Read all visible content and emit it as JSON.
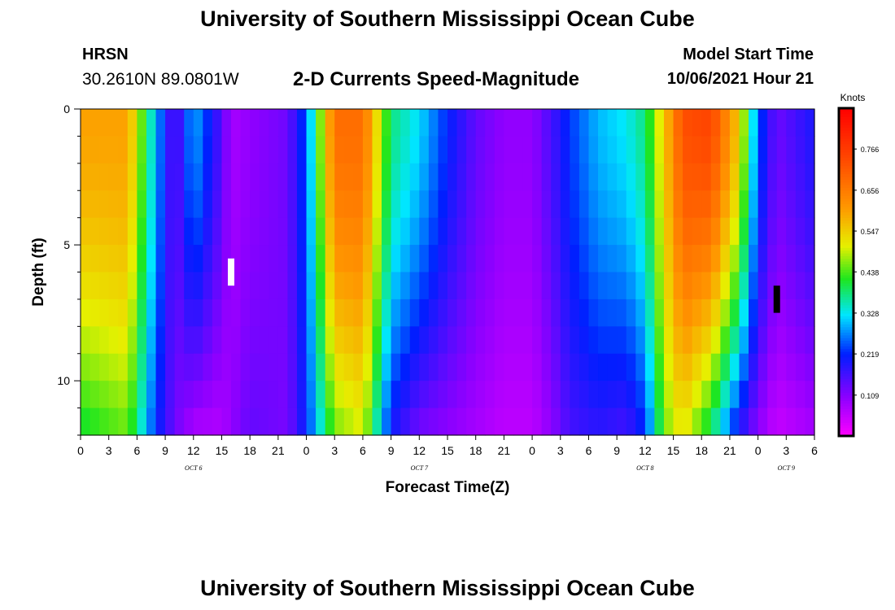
{
  "header": {
    "title": "University of Southern Mississippi Ocean Cube",
    "station": "HRSN",
    "coordinates": "30.2610N  89.0801W",
    "subtitle": "2-D Currents Speed-Magnitude",
    "model_start_label": "Model Start Time",
    "model_start_value": "10/06/2021 Hour 21"
  },
  "footer": {
    "title": "University of Southern Mississippi Ocean Cube"
  },
  "chart_data": {
    "type": "heatmap",
    "title": "2-D Currents Speed-Magnitude",
    "xlabel": "Forecast Time(Z)",
    "ylabel": "Depth (ft)",
    "colorbar_label": "Knots",
    "xlim": [
      0,
      78
    ],
    "ylim": [
      0,
      12
    ],
    "x_tick_labels": [
      "0",
      "3",
      "6",
      "9",
      "12",
      "15",
      "18",
      "21",
      "0",
      "3",
      "6",
      "9",
      "12",
      "15",
      "18",
      "21",
      "0",
      "3",
      "6",
      "9",
      "12",
      "15",
      "18",
      "21",
      "0",
      "3",
      "6"
    ],
    "y_tick_values": [
      0,
      5,
      10
    ],
    "y_tick_labels": [
      "0",
      "5",
      "10"
    ],
    "date_labels": [
      {
        "text": "OCT 6",
        "hours": 12
      },
      {
        "text": "OCT 7",
        "hours": 36
      },
      {
        "text": "OCT 8",
        "hours": 60
      },
      {
        "text": "OCT 9",
        "hours": 75
      }
    ],
    "colorbar_range": [
      0,
      0.875
    ],
    "colorbar_ticks": [
      "0.109",
      "0.219",
      "0.328",
      "0.438",
      "0.547",
      "0.656",
      "0.766"
    ],
    "colorbar_tick_values": [
      0.109,
      0.219,
      0.328,
      0.438,
      0.547,
      0.656,
      0.766
    ],
    "depth_profile": {
      "depths": [
        0,
        3,
        6,
        7.5,
        9,
        10.5,
        12
      ],
      "comment_free": true
    },
    "speed_keyframes_knots": {
      "hours": [
        0,
        5,
        8,
        10,
        12,
        15,
        16,
        18,
        22,
        24,
        27,
        30,
        33,
        36,
        39,
        42,
        45,
        48,
        50,
        52,
        55,
        58,
        60,
        62,
        64,
        67,
        70,
        72,
        74,
        78
      ],
      "surface": [
        0.6,
        0.6,
        0.3,
        0.13,
        0.3,
        0.15,
        0.08,
        0.1,
        0.13,
        0.25,
        0.68,
        0.68,
        0.38,
        0.32,
        0.22,
        0.14,
        0.1,
        0.1,
        0.16,
        0.23,
        0.3,
        0.33,
        0.38,
        0.55,
        0.73,
        0.75,
        0.55,
        0.25,
        0.13,
        0.2
      ],
      "bottom": [
        0.4,
        0.45,
        0.22,
        0.13,
        0.07,
        0.07,
        0.1,
        0.14,
        0.12,
        0.22,
        0.45,
        0.5,
        0.2,
        0.12,
        0.1,
        0.08,
        0.06,
        0.06,
        0.1,
        0.16,
        0.18,
        0.16,
        0.22,
        0.45,
        0.52,
        0.38,
        0.18,
        0.1,
        0.05,
        0.08
      ]
    },
    "markers": [
      {
        "color": "#ffffff",
        "hours": 16,
        "depth_from": 5.5,
        "depth_to": 6.5
      },
      {
        "color": "#000000",
        "hours": 74,
        "depth_from": 6.5,
        "depth_to": 7.5
      }
    ]
  }
}
